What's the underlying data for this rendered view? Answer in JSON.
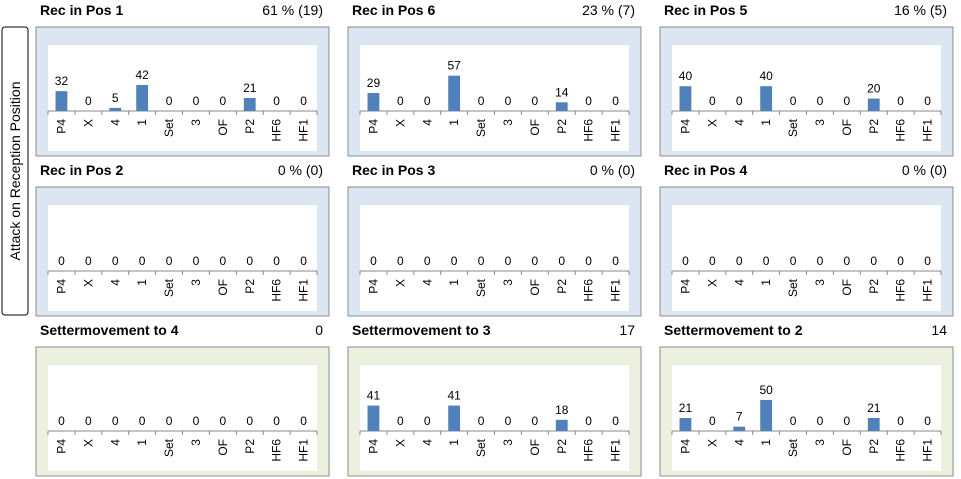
{
  "side_label": "Attack on Reception Position",
  "chart_data": [
    {
      "type": "bar",
      "title": "Rec in Pos 1",
      "summary": "61 % (19)",
      "background": "#dce6f2",
      "color": "#4f81bd",
      "ylim": [
        0,
        100
      ],
      "categories": [
        "P4",
        "X",
        "4",
        "1",
        "Set",
        "3",
        "OF",
        "P2",
        "HF6",
        "HF1"
      ],
      "values": [
        32,
        0,
        5,
        42,
        0,
        0,
        0,
        21,
        0,
        0
      ]
    },
    {
      "type": "bar",
      "title": "Rec in Pos 6",
      "summary": "23 % (7)",
      "background": "#dce6f2",
      "color": "#4f81bd",
      "ylim": [
        0,
        100
      ],
      "categories": [
        "P4",
        "X",
        "4",
        "1",
        "Set",
        "3",
        "OF",
        "P2",
        "HF6",
        "HF1"
      ],
      "values": [
        29,
        0,
        0,
        57,
        0,
        0,
        0,
        14,
        0,
        0
      ]
    },
    {
      "type": "bar",
      "title": "Rec in Pos 5",
      "summary": "16 % (5)",
      "background": "#dce6f2",
      "color": "#4f81bd",
      "ylim": [
        0,
        100
      ],
      "categories": [
        "P4",
        "X",
        "4",
        "1",
        "Set",
        "3",
        "OF",
        "P2",
        "HF6",
        "HF1"
      ],
      "values": [
        40,
        0,
        0,
        40,
        0,
        0,
        0,
        20,
        0,
        0
      ]
    },
    {
      "type": "bar",
      "title": "Rec in Pos 2",
      "summary": "0 % (0)",
      "background": "#dce6f2",
      "color": "#4f81bd",
      "ylim": [
        0,
        100
      ],
      "categories": [
        "P4",
        "X",
        "4",
        "1",
        "Set",
        "3",
        "OF",
        "P2",
        "HF6",
        "HF1"
      ],
      "values": [
        0,
        0,
        0,
        0,
        0,
        0,
        0,
        0,
        0,
        0
      ]
    },
    {
      "type": "bar",
      "title": "Rec in Pos 3",
      "summary": "0 % (0)",
      "background": "#dce6f2",
      "color": "#4f81bd",
      "ylim": [
        0,
        100
      ],
      "categories": [
        "P4",
        "X",
        "4",
        "1",
        "Set",
        "3",
        "OF",
        "P2",
        "HF6",
        "HF1"
      ],
      "values": [
        0,
        0,
        0,
        0,
        0,
        0,
        0,
        0,
        0,
        0
      ]
    },
    {
      "type": "bar",
      "title": "Rec in Pos 4",
      "summary": "0 % (0)",
      "background": "#dce6f2",
      "color": "#4f81bd",
      "ylim": [
        0,
        100
      ],
      "categories": [
        "P4",
        "X",
        "4",
        "1",
        "Set",
        "3",
        "OF",
        "P2",
        "HF6",
        "HF1"
      ],
      "values": [
        0,
        0,
        0,
        0,
        0,
        0,
        0,
        0,
        0,
        0
      ]
    },
    {
      "type": "bar",
      "title": "Settermovement to 4",
      "summary": "0",
      "background": "#ebf1de",
      "color": "#4f81bd",
      "ylim": [
        0,
        100
      ],
      "categories": [
        "P4",
        "X",
        "4",
        "1",
        "Set",
        "3",
        "OF",
        "P2",
        "HF6",
        "HF1"
      ],
      "values": [
        0,
        0,
        0,
        0,
        0,
        0,
        0,
        0,
        0,
        0
      ]
    },
    {
      "type": "bar",
      "title": "Settermovement to 3",
      "summary": "17",
      "background": "#ebf1de",
      "color": "#4f81bd",
      "ylim": [
        0,
        100
      ],
      "categories": [
        "P4",
        "X",
        "4",
        "1",
        "Set",
        "3",
        "OF",
        "P2",
        "HF6",
        "HF1"
      ],
      "values": [
        41,
        0,
        0,
        41,
        0,
        0,
        0,
        18,
        0,
        0
      ]
    },
    {
      "type": "bar",
      "title": "Settermovement to 2",
      "summary": "14",
      "background": "#ebf1de",
      "color": "#4f81bd",
      "ylim": [
        0,
        100
      ],
      "categories": [
        "P4",
        "X",
        "4",
        "1",
        "Set",
        "3",
        "OF",
        "P2",
        "HF6",
        "HF1"
      ],
      "values": [
        21,
        0,
        7,
        50,
        0,
        0,
        0,
        21,
        0,
        0
      ]
    }
  ]
}
